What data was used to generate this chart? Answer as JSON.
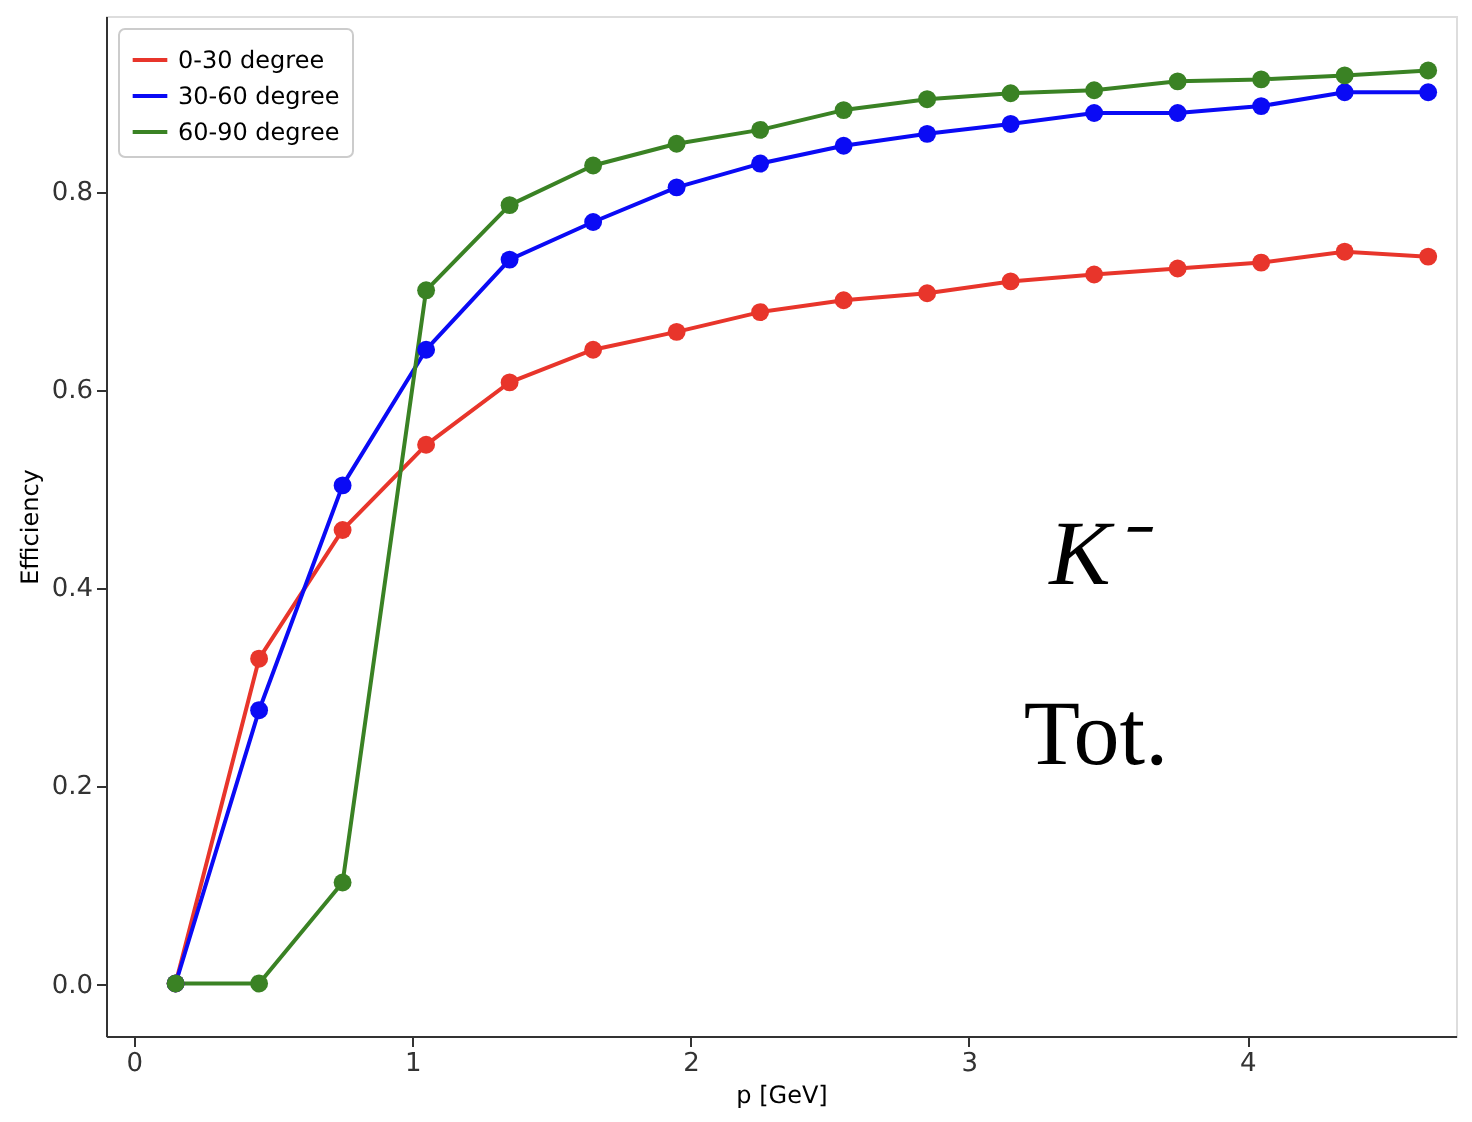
{
  "chart_data": {
    "type": "line",
    "xlabel": "p [GeV]",
    "ylabel": "Efficiency",
    "x": [
      0.15,
      0.45,
      0.75,
      1.05,
      1.35,
      1.65,
      1.95,
      2.25,
      2.55,
      2.85,
      3.15,
      3.45,
      3.75,
      4.05,
      4.35,
      4.65
    ],
    "series": [
      {
        "name": "0-30 degree",
        "color": "#e8352b",
        "values": [
          0.0,
          0.328,
          0.458,
          0.544,
          0.607,
          0.64,
          0.658,
          0.678,
          0.69,
          0.697,
          0.709,
          0.716,
          0.722,
          0.728,
          0.739,
          0.734
        ]
      },
      {
        "name": "30-60 degree",
        "color": "#0a0af5",
        "values": [
          0.0,
          0.276,
          0.503,
          0.64,
          0.731,
          0.769,
          0.804,
          0.828,
          0.846,
          0.858,
          0.868,
          0.879,
          0.879,
          0.886,
          0.9,
          0.9
        ]
      },
      {
        "name": "60-90 degree",
        "color": "#3a8224",
        "values": [
          0.0,
          0.0,
          0.102,
          0.7,
          0.786,
          0.826,
          0.848,
          0.862,
          0.882,
          0.893,
          0.899,
          0.902,
          0.911,
          0.913,
          0.917,
          0.922
        ]
      }
    ],
    "xlim": [
      -0.1,
      4.75
    ],
    "ylim": [
      -0.053,
      0.977
    ],
    "xticks": [
      0,
      1,
      2,
      3,
      4
    ],
    "yticks": [
      {
        "value": 0,
        "label": "0.0"
      },
      0.2,
      0.4,
      0.6,
      0.8
    ],
    "annotations": [
      "K⁻",
      "Tot."
    ],
    "legend": "top left",
    "marker": "circle",
    "line_style": "solid",
    "grid": false
  }
}
